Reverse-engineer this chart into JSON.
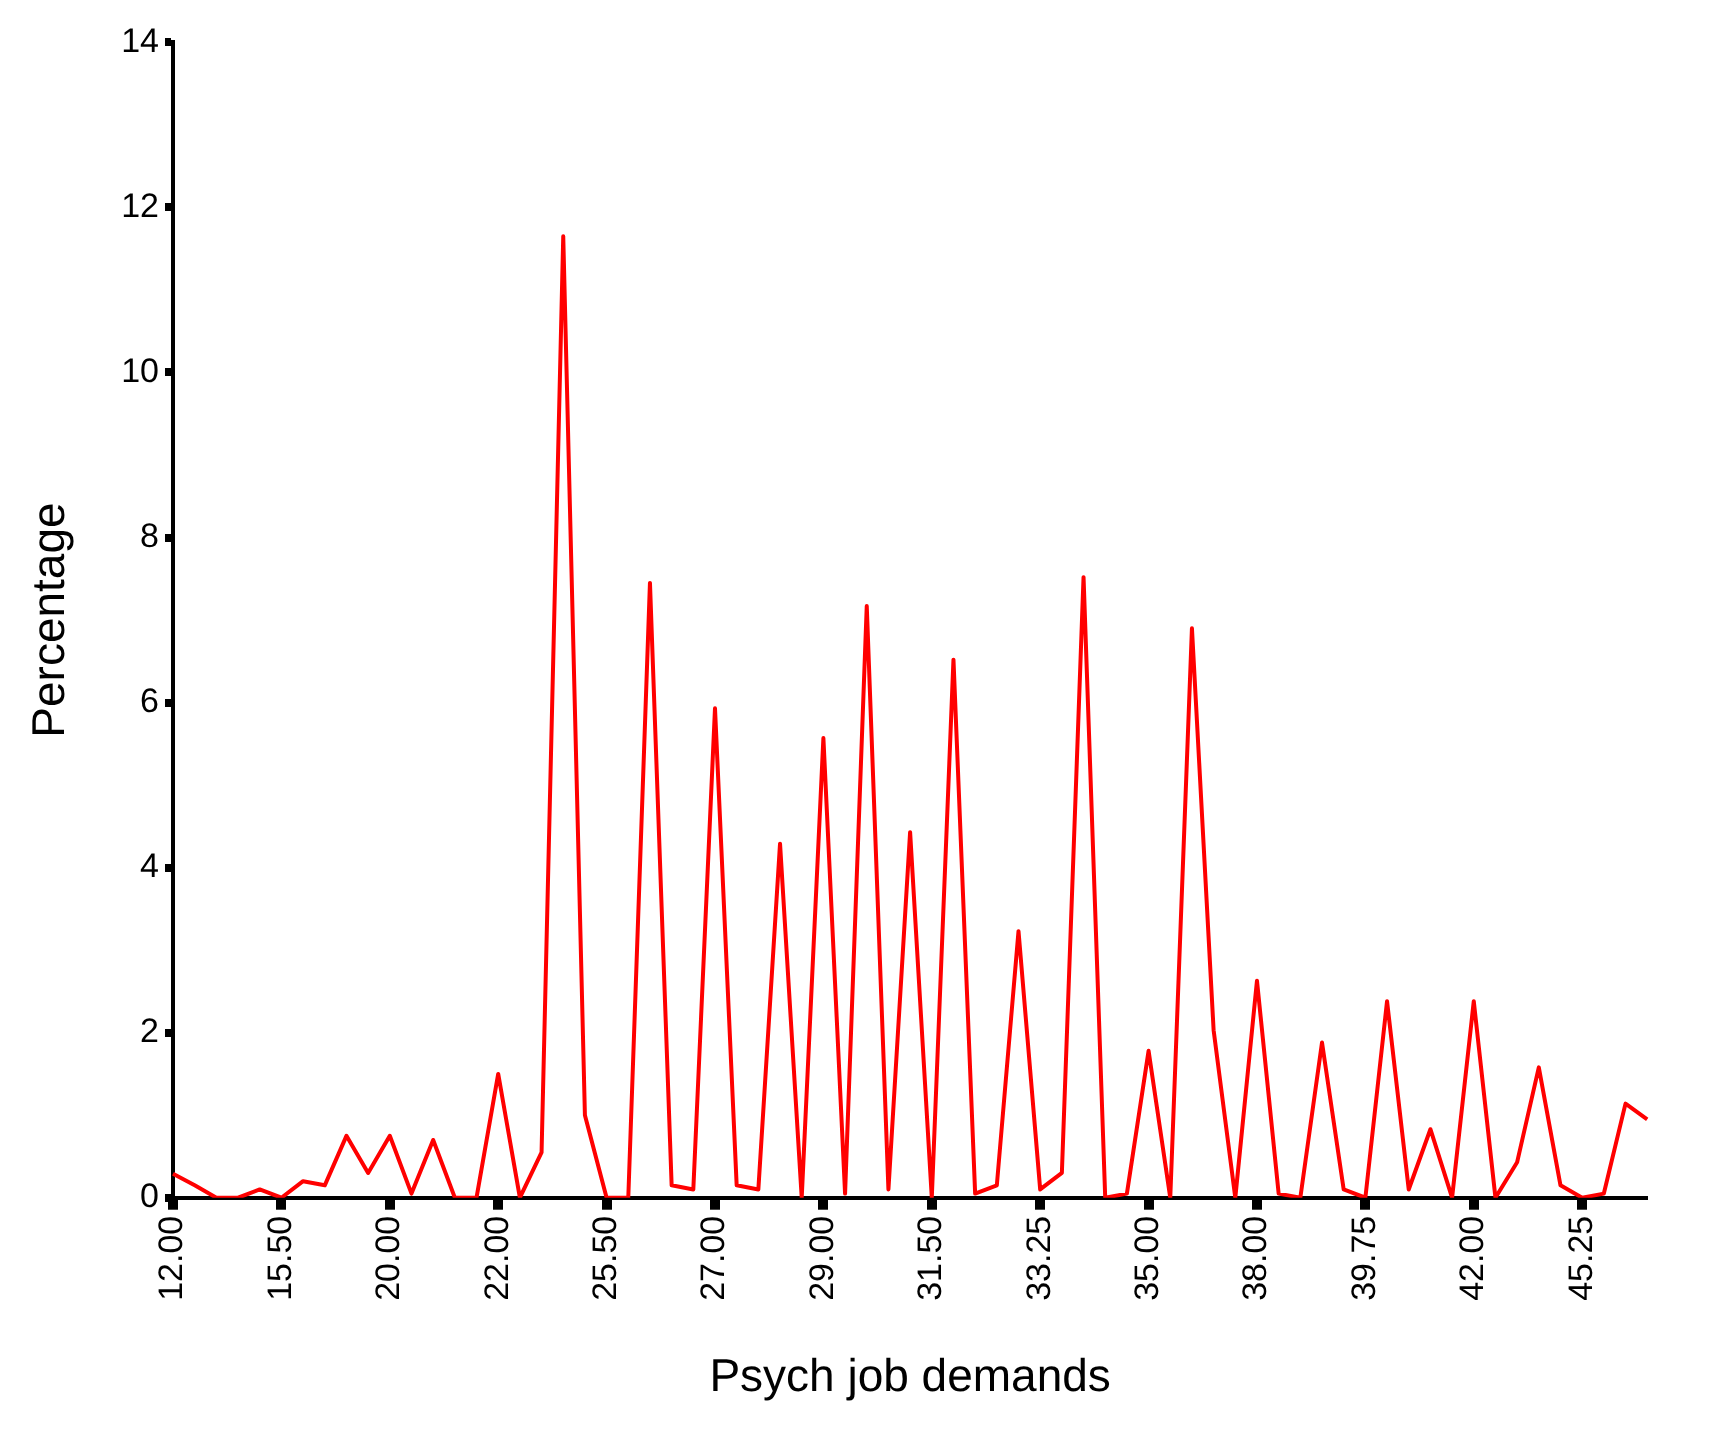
{
  "chart_data": {
    "type": "line",
    "xlabel": "Psych job demands",
    "ylabel": "Percentage",
    "categories": [
      "12.00",
      null,
      null,
      null,
      null,
      "15.50",
      null,
      null,
      null,
      null,
      "20.00",
      null,
      null,
      null,
      null,
      "22.00",
      null,
      null,
      null,
      null,
      "25.50",
      null,
      null,
      null,
      null,
      "27.00",
      null,
      null,
      null,
      null,
      "29.00",
      null,
      null,
      null,
      null,
      "31.50",
      null,
      null,
      null,
      null,
      "33.25",
      null,
      null,
      null,
      null,
      "35.00",
      null,
      null,
      null,
      null,
      "38.00",
      null,
      null,
      null,
      null,
      "39.75",
      null,
      null,
      null,
      null,
      "42.00",
      null,
      null,
      null,
      null,
      "45.25",
      null,
      null,
      null
    ],
    "series": [
      {
        "color": "#ff0000",
        "values": [
          0.29,
          0.15,
          0,
          0,
          0.1,
          0,
          0.2,
          0.15,
          0.75,
          0.3,
          0.75,
          0.05,
          0.7,
          0,
          0,
          1.5,
          0,
          0.55,
          11.65,
          1.0,
          0,
          0,
          7.45,
          0.15,
          0.1,
          5.93,
          0.15,
          0.1,
          4.29,
          0,
          5.57,
          0.05,
          7.17,
          0.1,
          4.43,
          0,
          6.52,
          0.05,
          0.15,
          3.23,
          0.1,
          0.3,
          7.52,
          0,
          0.05,
          1.78,
          0,
          6.9,
          2.03,
          0,
          2.63,
          0.05,
          0,
          1.88,
          0.1,
          0,
          2.38,
          0.1,
          0.83,
          0,
          2.38,
          0,
          0.43,
          1.58,
          0.15,
          0,
          0.05,
          1.14,
          0.95
        ]
      }
    ],
    "ylim": [
      0,
      14
    ],
    "yticks": [
      0,
      2,
      4,
      6,
      8,
      10,
      12,
      14
    ],
    "grid": false,
    "legend": false,
    "marker": "none",
    "line_style": "solid"
  }
}
